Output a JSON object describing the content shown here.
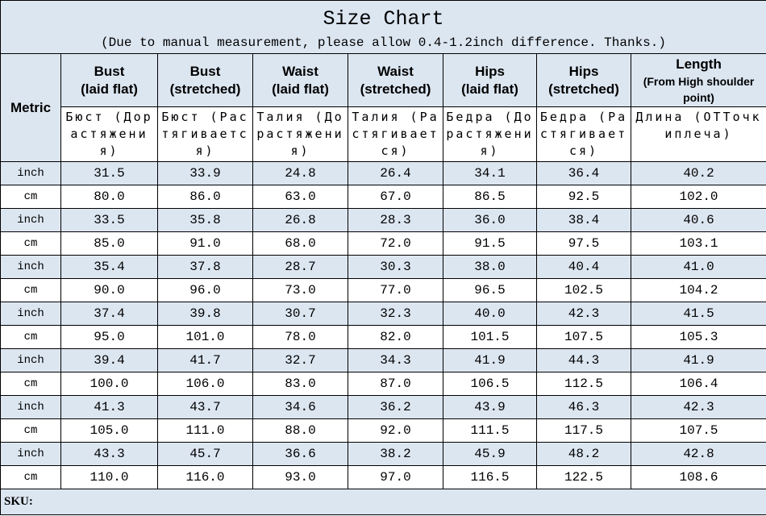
{
  "header": {
    "title": "Size Chart",
    "subtitle": "(Due to manual measurement, please allow 0.4-1.2inch difference. Thanks.)"
  },
  "table": {
    "columns": [
      {
        "title": "Metric"
      },
      {
        "title": "Bust",
        "sub": "(laid flat)",
        "ru": "Бюст (Дорастяжения)"
      },
      {
        "title": "Bust",
        "sub": "(stretched)",
        "ru": "Бюст (Растягивается)"
      },
      {
        "title": "Waist",
        "sub": "(laid flat)",
        "ru": "Талия (Дорастяжения)"
      },
      {
        "title": "Waist",
        "sub": "(stretched)",
        "ru": "Талия (Растягивается)"
      },
      {
        "title": "Hips",
        "sub": "(laid flat)",
        "ru": "Бедра (Дорастяжения)"
      },
      {
        "title": "Hips",
        "sub": "(stretched)",
        "ru": "Бедра (Растягивается)"
      },
      {
        "title": "Length",
        "sub": "(From High shoulder point)",
        "ru": "Длина (ОТТочкиплеча)"
      }
    ],
    "rows": [
      [
        "inch",
        "31.5",
        "33.9",
        "24.8",
        "26.4",
        "34.1",
        "36.4",
        "40.2"
      ],
      [
        "cm",
        "80.0",
        "86.0",
        "63.0",
        "67.0",
        "86.5",
        "92.5",
        "102.0"
      ],
      [
        "inch",
        "33.5",
        "35.8",
        "26.8",
        "28.3",
        "36.0",
        "38.4",
        "40.6"
      ],
      [
        "cm",
        "85.0",
        "91.0",
        "68.0",
        "72.0",
        "91.5",
        "97.5",
        "103.1"
      ],
      [
        "inch",
        "35.4",
        "37.8",
        "28.7",
        "30.3",
        "38.0",
        "40.4",
        "41.0"
      ],
      [
        "cm",
        "90.0",
        "96.0",
        "73.0",
        "77.0",
        "96.5",
        "102.5",
        "104.2"
      ],
      [
        "inch",
        "37.4",
        "39.8",
        "30.7",
        "32.3",
        "40.0",
        "42.3",
        "41.5"
      ],
      [
        "cm",
        "95.0",
        "101.0",
        "78.0",
        "82.0",
        "101.5",
        "107.5",
        "105.3"
      ],
      [
        "inch",
        "39.4",
        "41.7",
        "32.7",
        "34.3",
        "41.9",
        "44.3",
        "41.9"
      ],
      [
        "cm",
        "100.0",
        "106.0",
        "83.0",
        "87.0",
        "106.5",
        "112.5",
        "106.4"
      ],
      [
        "inch",
        "41.3",
        "43.7",
        "34.6",
        "36.2",
        "43.9",
        "46.3",
        "42.3"
      ],
      [
        "cm",
        "105.0",
        "111.0",
        "88.0",
        "92.0",
        "111.5",
        "117.5",
        "107.5"
      ],
      [
        "inch",
        "43.3",
        "45.7",
        "36.6",
        "38.2",
        "45.9",
        "48.2",
        "42.8"
      ],
      [
        "cm",
        "110.0",
        "116.0",
        "93.0",
        "97.0",
        "116.5",
        "122.5",
        "108.6"
      ]
    ]
  },
  "footer": {
    "sku": "SKU:"
  }
}
